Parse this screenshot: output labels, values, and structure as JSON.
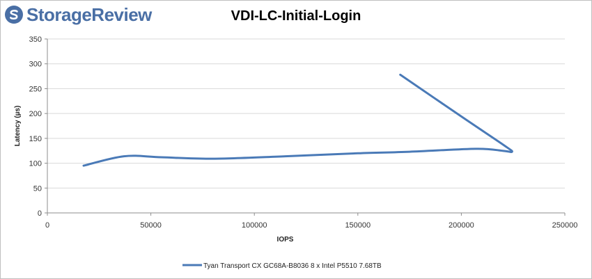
{
  "logo": {
    "text": "StorageReview",
    "color": "#4a6fa5"
  },
  "chart_data": {
    "type": "line",
    "title": "VDI-LC-Initial-Login",
    "xlabel": "IOPS",
    "ylabel": "Latency (µs)",
    "xlim": [
      0,
      250000
    ],
    "ylim": [
      0,
      350
    ],
    "xticks": [
      0,
      50000,
      100000,
      150000,
      200000,
      250000
    ],
    "yticks": [
      0,
      50,
      100,
      150,
      200,
      250,
      300,
      350
    ],
    "grid": true,
    "legend_position": "bottom",
    "series": [
      {
        "name": "Tyan Transport CX GC68A-B8036 8 x Intel P5510 7.68TB",
        "color": "#4a7ab7",
        "x": [
          17500,
          37000,
          55000,
          80000,
          115000,
          150000,
          175000,
          207000,
          220000,
          224500,
          221000,
          200000,
          170500
        ],
        "y": [
          95,
          114,
          112,
          109,
          114,
          120,
          123,
          129,
          125,
          123,
          135,
          194,
          278
        ]
      }
    ]
  }
}
